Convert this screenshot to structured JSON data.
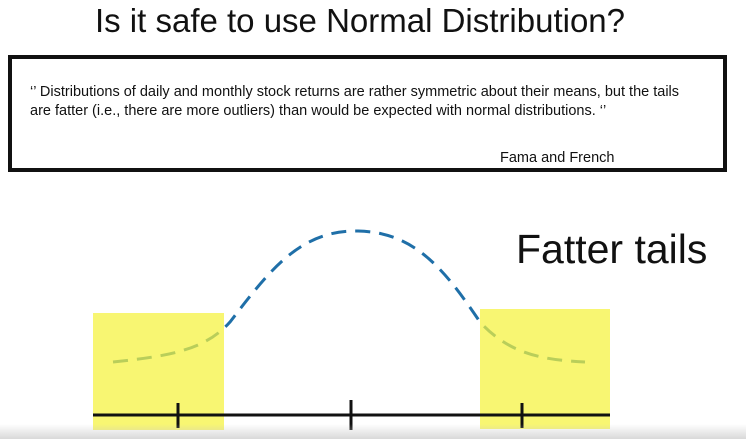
{
  "slide": {
    "title": "Is it safe to use Normal Distribution?"
  },
  "quote": {
    "text": "‘’ Distributions of daily and monthly stock returns are rather symmetric about their means, but the tails are fatter  (i.e., there are more outliers) than would be expected with normal distributions. ‘’",
    "attribution": "Fama and French"
  },
  "diagram": {
    "label": "Fatter tails",
    "colors": {
      "curve": "#1f6fa8",
      "highlight": "#f7f56a",
      "axis": "#111111"
    }
  }
}
